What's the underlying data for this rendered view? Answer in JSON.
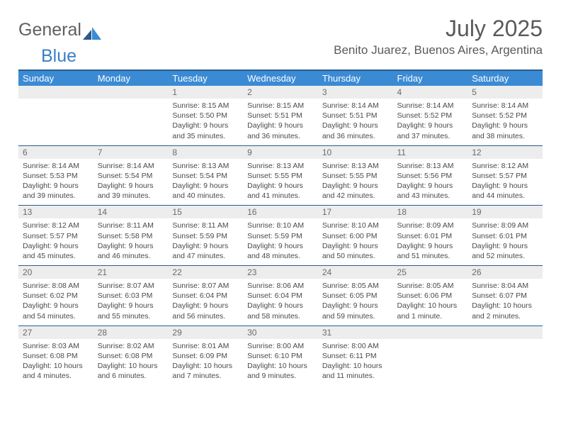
{
  "logo": {
    "text1": "General",
    "text2": "Blue"
  },
  "title": "July 2025",
  "location": "Benito Juarez, Buenos Aires, Argentina",
  "colors": {
    "header_bg": "#3b8bd4",
    "header_border": "#2a5d8f",
    "daynum_bg": "#ededed",
    "text_gray": "#5a5a5a",
    "logo_blue": "#3b7fc4"
  },
  "weekdays": [
    "Sunday",
    "Monday",
    "Tuesday",
    "Wednesday",
    "Thursday",
    "Friday",
    "Saturday"
  ],
  "weeks": [
    [
      {
        "day": "",
        "sunrise": "",
        "sunset": "",
        "daylight": ""
      },
      {
        "day": "",
        "sunrise": "",
        "sunset": "",
        "daylight": ""
      },
      {
        "day": "1",
        "sunrise": "Sunrise: 8:15 AM",
        "sunset": "Sunset: 5:50 PM",
        "daylight": "Daylight: 9 hours and 35 minutes."
      },
      {
        "day": "2",
        "sunrise": "Sunrise: 8:15 AM",
        "sunset": "Sunset: 5:51 PM",
        "daylight": "Daylight: 9 hours and 36 minutes."
      },
      {
        "day": "3",
        "sunrise": "Sunrise: 8:14 AM",
        "sunset": "Sunset: 5:51 PM",
        "daylight": "Daylight: 9 hours and 36 minutes."
      },
      {
        "day": "4",
        "sunrise": "Sunrise: 8:14 AM",
        "sunset": "Sunset: 5:52 PM",
        "daylight": "Daylight: 9 hours and 37 minutes."
      },
      {
        "day": "5",
        "sunrise": "Sunrise: 8:14 AM",
        "sunset": "Sunset: 5:52 PM",
        "daylight": "Daylight: 9 hours and 38 minutes."
      }
    ],
    [
      {
        "day": "6",
        "sunrise": "Sunrise: 8:14 AM",
        "sunset": "Sunset: 5:53 PM",
        "daylight": "Daylight: 9 hours and 39 minutes."
      },
      {
        "day": "7",
        "sunrise": "Sunrise: 8:14 AM",
        "sunset": "Sunset: 5:54 PM",
        "daylight": "Daylight: 9 hours and 39 minutes."
      },
      {
        "day": "8",
        "sunrise": "Sunrise: 8:13 AM",
        "sunset": "Sunset: 5:54 PM",
        "daylight": "Daylight: 9 hours and 40 minutes."
      },
      {
        "day": "9",
        "sunrise": "Sunrise: 8:13 AM",
        "sunset": "Sunset: 5:55 PM",
        "daylight": "Daylight: 9 hours and 41 minutes."
      },
      {
        "day": "10",
        "sunrise": "Sunrise: 8:13 AM",
        "sunset": "Sunset: 5:55 PM",
        "daylight": "Daylight: 9 hours and 42 minutes."
      },
      {
        "day": "11",
        "sunrise": "Sunrise: 8:13 AM",
        "sunset": "Sunset: 5:56 PM",
        "daylight": "Daylight: 9 hours and 43 minutes."
      },
      {
        "day": "12",
        "sunrise": "Sunrise: 8:12 AM",
        "sunset": "Sunset: 5:57 PM",
        "daylight": "Daylight: 9 hours and 44 minutes."
      }
    ],
    [
      {
        "day": "13",
        "sunrise": "Sunrise: 8:12 AM",
        "sunset": "Sunset: 5:57 PM",
        "daylight": "Daylight: 9 hours and 45 minutes."
      },
      {
        "day": "14",
        "sunrise": "Sunrise: 8:11 AM",
        "sunset": "Sunset: 5:58 PM",
        "daylight": "Daylight: 9 hours and 46 minutes."
      },
      {
        "day": "15",
        "sunrise": "Sunrise: 8:11 AM",
        "sunset": "Sunset: 5:59 PM",
        "daylight": "Daylight: 9 hours and 47 minutes."
      },
      {
        "day": "16",
        "sunrise": "Sunrise: 8:10 AM",
        "sunset": "Sunset: 5:59 PM",
        "daylight": "Daylight: 9 hours and 48 minutes."
      },
      {
        "day": "17",
        "sunrise": "Sunrise: 8:10 AM",
        "sunset": "Sunset: 6:00 PM",
        "daylight": "Daylight: 9 hours and 50 minutes."
      },
      {
        "day": "18",
        "sunrise": "Sunrise: 8:09 AM",
        "sunset": "Sunset: 6:01 PM",
        "daylight": "Daylight: 9 hours and 51 minutes."
      },
      {
        "day": "19",
        "sunrise": "Sunrise: 8:09 AM",
        "sunset": "Sunset: 6:01 PM",
        "daylight": "Daylight: 9 hours and 52 minutes."
      }
    ],
    [
      {
        "day": "20",
        "sunrise": "Sunrise: 8:08 AM",
        "sunset": "Sunset: 6:02 PM",
        "daylight": "Daylight: 9 hours and 54 minutes."
      },
      {
        "day": "21",
        "sunrise": "Sunrise: 8:07 AM",
        "sunset": "Sunset: 6:03 PM",
        "daylight": "Daylight: 9 hours and 55 minutes."
      },
      {
        "day": "22",
        "sunrise": "Sunrise: 8:07 AM",
        "sunset": "Sunset: 6:04 PM",
        "daylight": "Daylight: 9 hours and 56 minutes."
      },
      {
        "day": "23",
        "sunrise": "Sunrise: 8:06 AM",
        "sunset": "Sunset: 6:04 PM",
        "daylight": "Daylight: 9 hours and 58 minutes."
      },
      {
        "day": "24",
        "sunrise": "Sunrise: 8:05 AM",
        "sunset": "Sunset: 6:05 PM",
        "daylight": "Daylight: 9 hours and 59 minutes."
      },
      {
        "day": "25",
        "sunrise": "Sunrise: 8:05 AM",
        "sunset": "Sunset: 6:06 PM",
        "daylight": "Daylight: 10 hours and 1 minute."
      },
      {
        "day": "26",
        "sunrise": "Sunrise: 8:04 AM",
        "sunset": "Sunset: 6:07 PM",
        "daylight": "Daylight: 10 hours and 2 minutes."
      }
    ],
    [
      {
        "day": "27",
        "sunrise": "Sunrise: 8:03 AM",
        "sunset": "Sunset: 6:08 PM",
        "daylight": "Daylight: 10 hours and 4 minutes."
      },
      {
        "day": "28",
        "sunrise": "Sunrise: 8:02 AM",
        "sunset": "Sunset: 6:08 PM",
        "daylight": "Daylight: 10 hours and 6 minutes."
      },
      {
        "day": "29",
        "sunrise": "Sunrise: 8:01 AM",
        "sunset": "Sunset: 6:09 PM",
        "daylight": "Daylight: 10 hours and 7 minutes."
      },
      {
        "day": "30",
        "sunrise": "Sunrise: 8:00 AM",
        "sunset": "Sunset: 6:10 PM",
        "daylight": "Daylight: 10 hours and 9 minutes."
      },
      {
        "day": "31",
        "sunrise": "Sunrise: 8:00 AM",
        "sunset": "Sunset: 6:11 PM",
        "daylight": "Daylight: 10 hours and 11 minutes."
      },
      {
        "day": "",
        "sunrise": "",
        "sunset": "",
        "daylight": ""
      },
      {
        "day": "",
        "sunrise": "",
        "sunset": "",
        "daylight": ""
      }
    ]
  ]
}
